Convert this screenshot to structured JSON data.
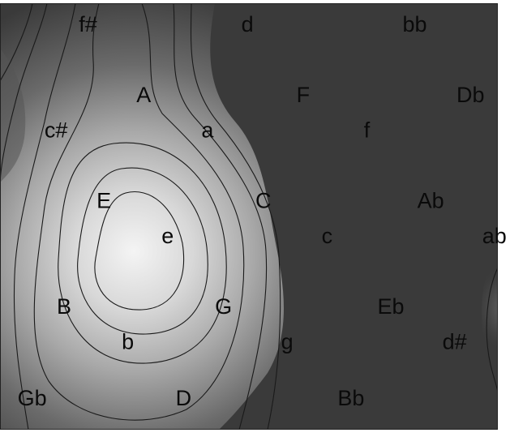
{
  "chart_data": {
    "type": "heatmap",
    "description_style": "grayscale density map with contour lines over a key space",
    "colormap": [
      "#3a3a3a",
      "#f4f4f4"
    ],
    "grid": false,
    "legend": false,
    "peak_region": "e",
    "keys": [
      {
        "label": "f#",
        "col": 0.9,
        "row": 0.0
      },
      {
        "label": "d",
        "col": 2.9,
        "row": 0.0
      },
      {
        "label": "bb",
        "col": 5.0,
        "row": 0.0
      },
      {
        "label": "A",
        "col": 1.6,
        "row": 1.0
      },
      {
        "label": "F",
        "col": 3.6,
        "row": 1.0
      },
      {
        "label": "Db",
        "col": 5.7,
        "row": 1.0
      },
      {
        "label": "c#",
        "col": 0.5,
        "row": 1.5
      },
      {
        "label": "a",
        "col": 2.4,
        "row": 1.5
      },
      {
        "label": "f",
        "col": 4.4,
        "row": 1.5
      },
      {
        "label": "E",
        "col": 1.1,
        "row": 2.5
      },
      {
        "label": "C",
        "col": 3.1,
        "row": 2.5
      },
      {
        "label": "Ab",
        "col": 5.2,
        "row": 2.5
      },
      {
        "label": "e",
        "col": 1.9,
        "row": 3.0
      },
      {
        "label": "c",
        "col": 3.9,
        "row": 3.0
      },
      {
        "label": "ab",
        "col": 6.0,
        "row": 3.0
      },
      {
        "label": "B",
        "col": 0.6,
        "row": 4.0
      },
      {
        "label": "G",
        "col": 2.6,
        "row": 4.0
      },
      {
        "label": "Eb",
        "col": 4.7,
        "row": 4.0
      },
      {
        "label": "b",
        "col": 1.4,
        "row": 4.5
      },
      {
        "label": "g",
        "col": 3.4,
        "row": 4.5
      },
      {
        "label": "d#",
        "col": 5.5,
        "row": 4.5
      },
      {
        "label": "Gb",
        "col": 0.2,
        "row": 5.3
      },
      {
        "label": "D",
        "col": 2.1,
        "row": 5.3
      },
      {
        "label": "Bb",
        "col": 4.2,
        "row": 5.3
      }
    ]
  }
}
